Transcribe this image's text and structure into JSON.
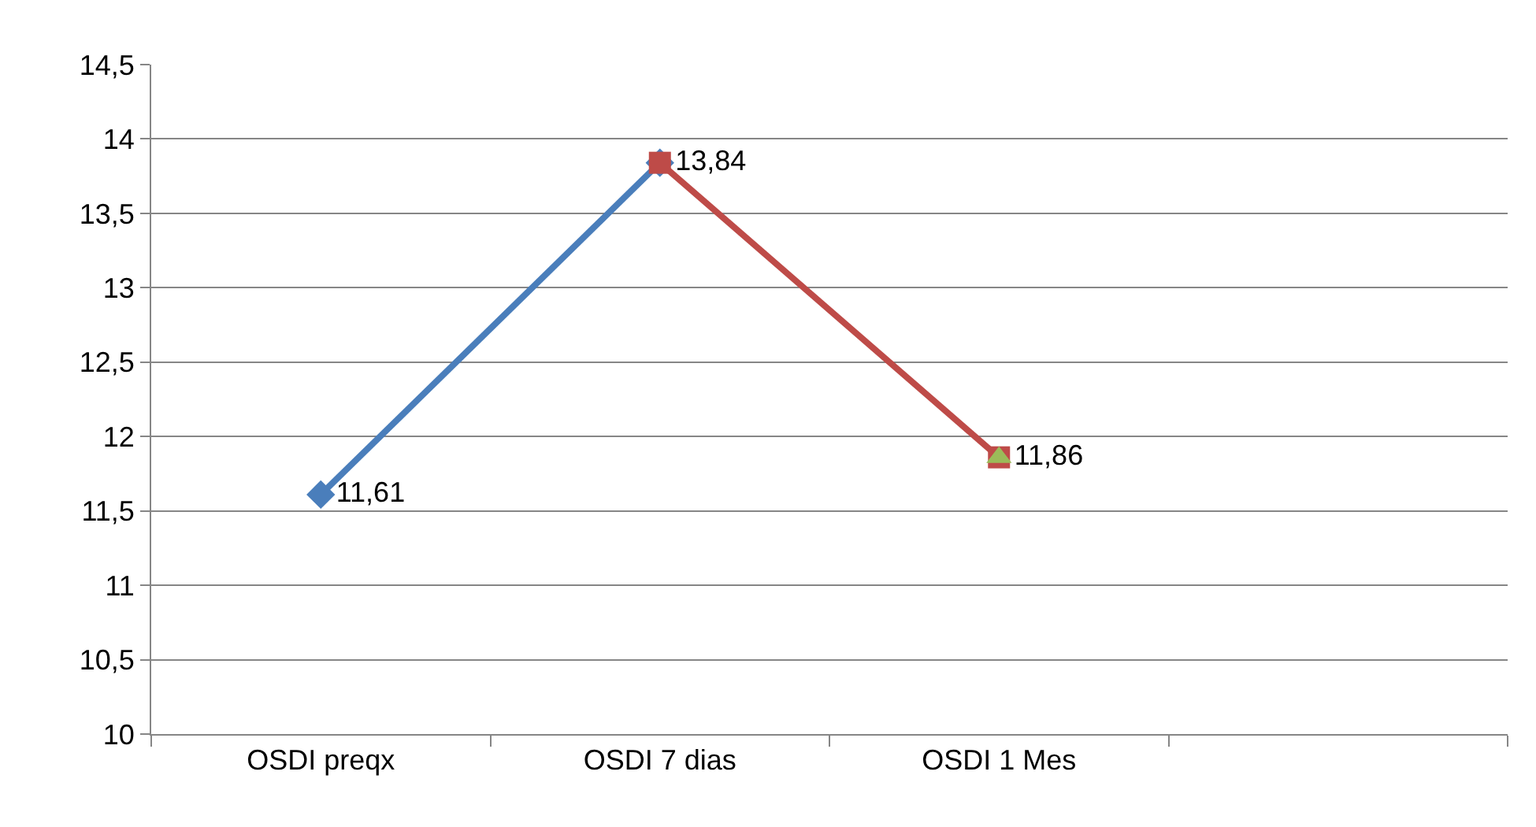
{
  "chart_data": {
    "type": "line",
    "categories": [
      "OSDI preqx",
      "OSDI 7 dias",
      "OSDI 1 Mes",
      null
    ],
    "series": [
      {
        "color": "#4a7ebb",
        "marker": "diamond",
        "values": [
          11.61,
          13.84,
          null,
          null
        ],
        "value_labels": [
          "11,61",
          null,
          null,
          null
        ]
      },
      {
        "color": "#be4b48",
        "marker": "square",
        "values": [
          null,
          13.84,
          11.86,
          null
        ],
        "value_labels": [
          null,
          "13,84",
          "11,86",
          null
        ]
      },
      {
        "color": "#9bbb59",
        "marker": "triangle",
        "values": [
          null,
          null,
          11.86,
          null
        ],
        "value_labels": [
          null,
          null,
          null,
          null
        ]
      }
    ],
    "ylim": [
      10,
      14.5
    ],
    "yticks": [
      10,
      {
        "value": 10.5,
        "label": "10,5"
      },
      11,
      {
        "value": 11.5,
        "label": "11,5"
      },
      12,
      {
        "value": 12.5,
        "label": "12,5"
      },
      13,
      {
        "value": 13.5,
        "label": "13,5"
      },
      14,
      {
        "value": 14.5,
        "label": "14,5"
      }
    ],
    "grid": "y",
    "line_style": "solid"
  }
}
